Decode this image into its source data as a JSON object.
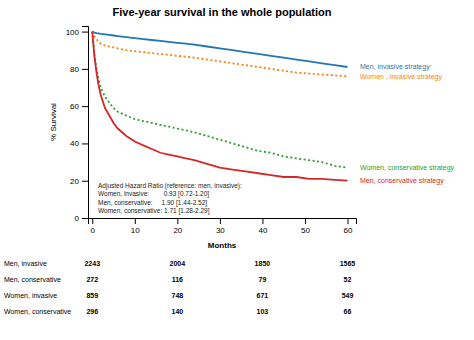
{
  "chart_data": {
    "type": "line",
    "title": "Five-year survival in the whole population",
    "x_label": "Months",
    "y_label": "% Survival",
    "xlim": [
      -1,
      62
    ],
    "ylim": [
      0,
      103
    ],
    "xticks": [
      0,
      10,
      20,
      30,
      40,
      50,
      60
    ],
    "yticks": [
      0,
      20,
      40,
      60,
      80,
      100
    ],
    "x": [
      0,
      0.5,
      1,
      1.5,
      2,
      3,
      4,
      5,
      6,
      7,
      8,
      10,
      12,
      14,
      16,
      18,
      20,
      22,
      24,
      27,
      30,
      33,
      36,
      39,
      42,
      45,
      48,
      51,
      54,
      57,
      60
    ],
    "series": [
      {
        "name": "Men, invasive strategy",
        "line_style": "solid",
        "values": [
          100,
          99.5,
          99.2,
          99.0,
          98.8,
          98.5,
          98.2,
          97.9,
          97.6,
          97.3,
          97.0,
          96.5,
          96.0,
          95.5,
          95.0,
          94.5,
          94.0,
          93.5,
          93.0,
          92.0,
          91.0,
          90.0,
          89.0,
          88.0,
          87.0,
          86.0,
          85.0,
          84.0,
          83.0,
          82.0,
          81.0
        ]
      },
      {
        "name": "Women , invasive strategy",
        "line_style": "dotted",
        "values": [
          100,
          97.5,
          96.0,
          94.5,
          93.5,
          92.5,
          92.0,
          91.5,
          91.0,
          90.5,
          90.0,
          89.5,
          89.0,
          88.5,
          88.0,
          87.5,
          87.0,
          86.5,
          86.0,
          85.0,
          84.0,
          83.0,
          82.0,
          81.0,
          80.0,
          79.0,
          78.0,
          77.5,
          77.0,
          76.5,
          76.0
        ]
      },
      {
        "name": "Women, conservative strategy",
        "line_style": "dotted",
        "values": [
          100,
          88,
          80,
          74,
          70,
          65,
          62,
          59,
          57,
          56,
          55,
          53,
          52,
          51,
          50,
          49,
          48,
          47,
          46,
          44,
          42,
          40,
          38,
          36,
          35,
          33,
          32,
          31,
          30,
          28,
          27
        ]
      },
      {
        "name": "Men, conservative strategy",
        "line_style": "solid",
        "values": [
          100,
          87,
          78,
          71,
          66,
          59,
          55,
          51,
          48,
          46,
          44,
          41,
          39,
          37,
          35,
          34,
          33,
          32,
          31,
          29,
          27,
          26,
          25,
          24,
          23,
          22,
          22,
          21,
          21,
          20.5,
          20
        ]
      }
    ],
    "annotations": [
      "Adjusted Hazard Ratio (reference: men, invasive):",
      "Women, invasive:        0.93 [0.72-1.20]",
      "Men, conservative:     1.90 [1.44-2.52]",
      "Women, conservative: 1.71 [1.28-2.29]"
    ],
    "risk_table": {
      "x": [
        0,
        20,
        40,
        60
      ],
      "labels": [
        "Men, invasive",
        "Men, conservative",
        "Women, invasive",
        "Women, conservative"
      ],
      "values": [
        [
          2243,
          2004,
          1850,
          1565
        ],
        [
          272,
          116,
          79,
          52
        ],
        [
          859,
          748,
          671,
          549
        ],
        [
          296,
          140,
          103,
          66
        ]
      ]
    }
  }
}
